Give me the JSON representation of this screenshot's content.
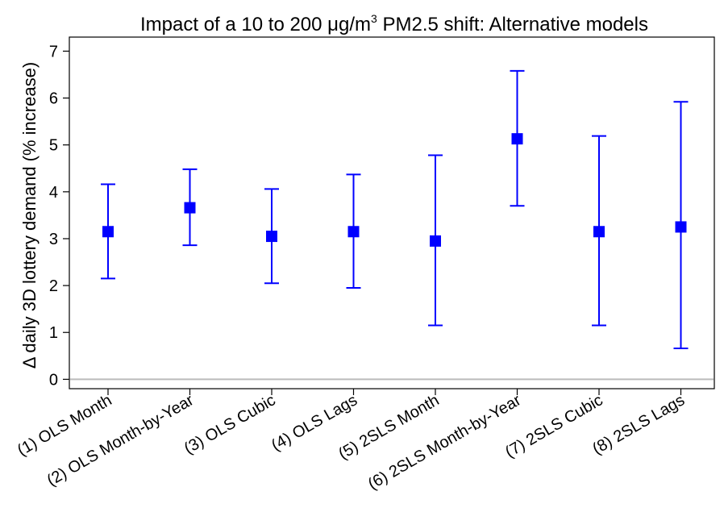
{
  "chart_data": {
    "type": "scatter",
    "title_pre": "Impact of a 10 to 200 ",
    "title_unit_mu": "μg/m",
    "title_sup": "3",
    "title_post": " PM2.5 shift: Alternative models",
    "ylabel": "Δ daily 3D lottery demand (% increase)",
    "xlabel": "",
    "ylim": [
      -0.2,
      7.3
    ],
    "yticks": [
      0,
      1,
      2,
      3,
      4,
      5,
      6,
      7
    ],
    "ytick_labels": [
      "0",
      "1",
      "2",
      "3",
      "4",
      "5",
      "6",
      "7"
    ],
    "reference_line": 0,
    "grid": false,
    "categories": [
      "(1) OLS Month",
      "(2) OLS Month-by-Year",
      "(3) OLS Cubic",
      "(4) OLS Lags",
      "(5) 2SLS Month",
      "(6) 2SLS Month-by-Year",
      "(7) 2SLS Cubic",
      "(8) 2SLS Lags"
    ],
    "series": [
      {
        "estimate": [
          3.15,
          3.66,
          3.05,
          3.15,
          2.95,
          5.13,
          3.15,
          3.25
        ],
        "ci_low": [
          2.15,
          2.86,
          2.05,
          1.95,
          1.15,
          3.7,
          1.15,
          0.66
        ],
        "ci_high": [
          4.16,
          4.48,
          4.06,
          4.37,
          4.78,
          6.58,
          5.19,
          5.92
        ]
      }
    ],
    "colors": {
      "marker": "#0000ff",
      "ci": "#0000ff",
      "reference": "#bbbbbb",
      "axis": "#000000"
    }
  }
}
